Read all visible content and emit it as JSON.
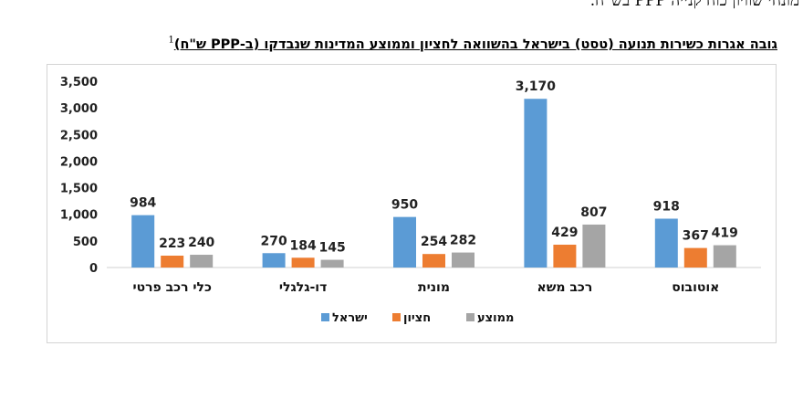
{
  "page": {
    "top_text": "מונחי שוויון כוח קנייה PPP בש\"ח."
  },
  "colors": {
    "israel": "#5B9BD5",
    "haziyon": "#ED7D31",
    "memutsa": "#A5A5A5"
  },
  "chart_data": {
    "type": "bar",
    "title": "גובה אגרות כשירות תנועה (טסט) בישראל בהשוואה לחציון וממוצע המדינות שנבדקו (ב-PPP ש\"ח)",
    "title_note": "1",
    "categories": [
      "אוטובוס",
      "רכב משא",
      "מונית",
      "דו-גלגלי",
      "כלי רכב פרטי"
    ],
    "series": [
      {
        "name": "ישראל",
        "values": [
          918,
          3170,
          950,
          270,
          984
        ]
      },
      {
        "name": "חציון",
        "values": [
          367,
          429,
          254,
          184,
          223
        ]
      },
      {
        "name": "ממוצע",
        "values": [
          419,
          807,
          282,
          145,
          240
        ]
      }
    ],
    "y_ticks": [
      "0",
      "500",
      "1,000",
      "1,500",
      "2,000",
      "2,500",
      "3,000",
      "3,500"
    ],
    "ylim": [
      0,
      3500
    ],
    "grid": false,
    "legend_position": "bottom"
  }
}
